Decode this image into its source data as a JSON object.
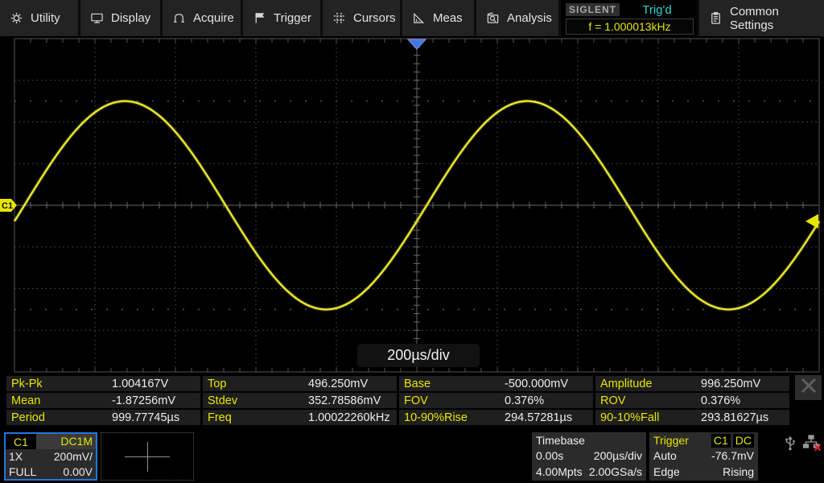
{
  "menu": {
    "items": [
      {
        "icon": "gear-icon",
        "label": "Utility"
      },
      {
        "icon": "display-icon",
        "label": "Display"
      },
      {
        "icon": "acquire-icon",
        "label": "Acquire"
      },
      {
        "icon": "flag-icon",
        "label": "Trigger"
      },
      {
        "icon": "cursors-icon",
        "label": "Cursors"
      },
      {
        "icon": "meas-icon",
        "label": "Meas"
      },
      {
        "icon": "analysis-icon",
        "label": "Analysis"
      },
      {
        "icon": "clipboard-icon",
        "label": "Common Settings"
      }
    ]
  },
  "status": {
    "brand": "SIGLENT",
    "trigger_status": "Trig'd",
    "frequency_readout": "f = 1.000013kHz"
  },
  "timebase_overlay": "200µs/div",
  "measurements": {
    "rows": [
      {
        "cells": [
          {
            "label": "Pk-Pk",
            "value": "1.004167V"
          },
          {
            "label": "Top",
            "value": "496.250mV"
          },
          {
            "label": "Base",
            "value": "-500.000mV"
          },
          {
            "label": "Amplitude",
            "value": "996.250mV"
          }
        ]
      },
      {
        "cells": [
          {
            "label": "Mean",
            "value": "-1.87256mV"
          },
          {
            "label": "Stdev",
            "value": "352.78586mV"
          },
          {
            "label": "FOV",
            "value": "0.376%"
          },
          {
            "label": "ROV",
            "value": "0.376%"
          }
        ]
      },
      {
        "cells": [
          {
            "label": "Period",
            "value": "999.77745µs"
          },
          {
            "label": "Freq",
            "value": "1.00022260kHz"
          },
          {
            "label": "10-90%Rise",
            "value": "294.57281µs"
          },
          {
            "label": "90-10%Fall",
            "value": "293.81627µs"
          }
        ]
      }
    ]
  },
  "channel1": {
    "name": "C1",
    "coupling": "DC1M",
    "probe": "1X",
    "scale": "200mV/",
    "bandwidth": "FULL",
    "offset": "0.00V"
  },
  "timebase_box": {
    "title": "Timebase",
    "delay": "0.00s",
    "scale": "200µs/div",
    "memory": "4.00Mpts",
    "sample_rate": "2.00GSa/s"
  },
  "trigger_box": {
    "title": "Trigger",
    "source": "C1",
    "coupling": "DC",
    "mode": "Auto",
    "level": "-76.7mV",
    "type": "Edge",
    "slope": "Rising"
  },
  "waveform": {
    "shape": "sine",
    "channel": "C1",
    "amplitude_mv": 500,
    "offset_mv": 0,
    "period_us": 1000,
    "volts_per_div_mv": 200,
    "us_per_div": 200,
    "trigger_level_mv": -76.7,
    "trigger_edge": "Rising"
  },
  "grid": {
    "h_divisions": 10,
    "v_divisions": 8
  },
  "colors": {
    "channel_yellow": "#ece82c",
    "label_yellow": "#e6e600",
    "trigd_cyan": "#2bd5d5",
    "trigger_blue": "#3b7ae2",
    "lan_error_red": "#e02020",
    "channel_border_blue": "#2277dd"
  }
}
